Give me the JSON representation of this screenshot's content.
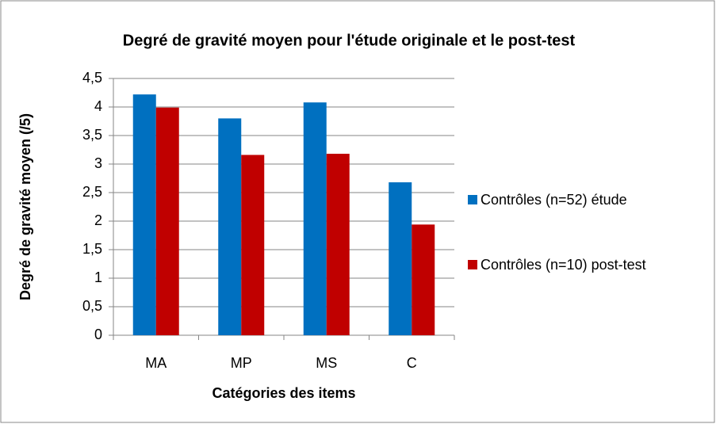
{
  "chart_data": {
    "type": "bar",
    "title": "Degré de gravité moyen pour l'étude originale et le post-test",
    "xlabel": "Catégories des items",
    "ylabel": "Degré de gravité moyen (/5)",
    "categories": [
      "MA",
      "MP",
      "MS",
      "C"
    ],
    "series": [
      {
        "name": "Contrôles (n=52) étude",
        "color": "#0070c0",
        "values": [
          4.22,
          3.8,
          4.08,
          2.68
        ]
      },
      {
        "name": "Contrôles (n=10) post-test",
        "color": "#c00000",
        "values": [
          3.99,
          3.16,
          3.18,
          1.94
        ]
      }
    ],
    "ylim": [
      0,
      4.5
    ],
    "yticks": [
      0,
      {
        "value": 0.5,
        "label": "0,5"
      },
      1,
      {
        "value": 1.5,
        "label": "1,5"
      },
      2,
      {
        "value": 2.5,
        "label": "2,5"
      },
      3,
      {
        "value": 3.5,
        "label": "3,5"
      },
      4,
      {
        "value": 4.5,
        "label": "4,5"
      }
    ],
    "grid": true,
    "legend": "right"
  }
}
